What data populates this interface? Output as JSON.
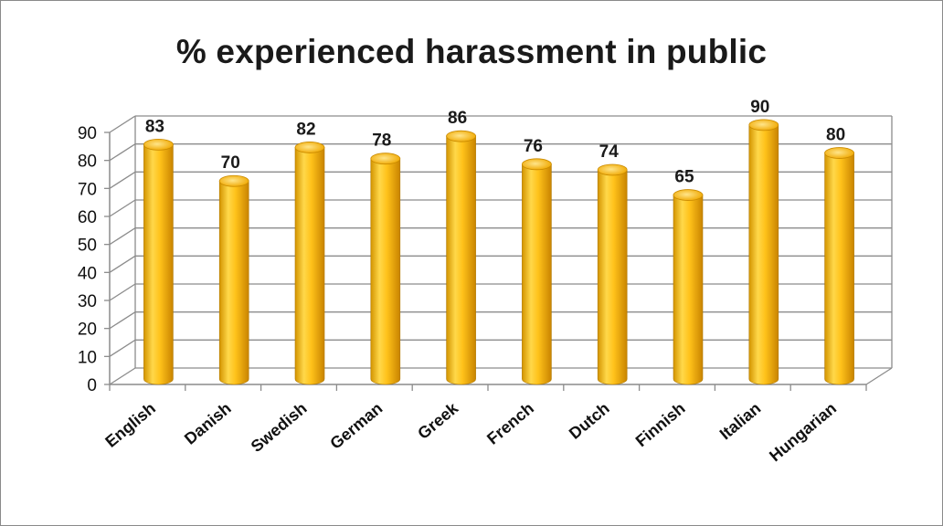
{
  "chart_data": {
    "type": "bar",
    "title": "% experienced harassment in public",
    "categories": [
      "English",
      "Danish",
      "Swedish",
      "German",
      "Greek",
      "French",
      "Dutch",
      "Finnish",
      "Italian",
      "Hungarian"
    ],
    "values": [
      83,
      70,
      82,
      78,
      86,
      76,
      74,
      65,
      90,
      80
    ],
    "ylim": [
      0,
      90
    ],
    "yticks": [
      "0",
      "10",
      "20",
      "30",
      "40",
      "50",
      "60",
      "70",
      "80",
      "90"
    ],
    "grid": true,
    "style": "3d-cylinder",
    "colors": {
      "bar": "#f5b400",
      "bar_dark": "#c98a00",
      "bar_light": "#ffe27a",
      "grid": "#8c8c8c"
    }
  }
}
